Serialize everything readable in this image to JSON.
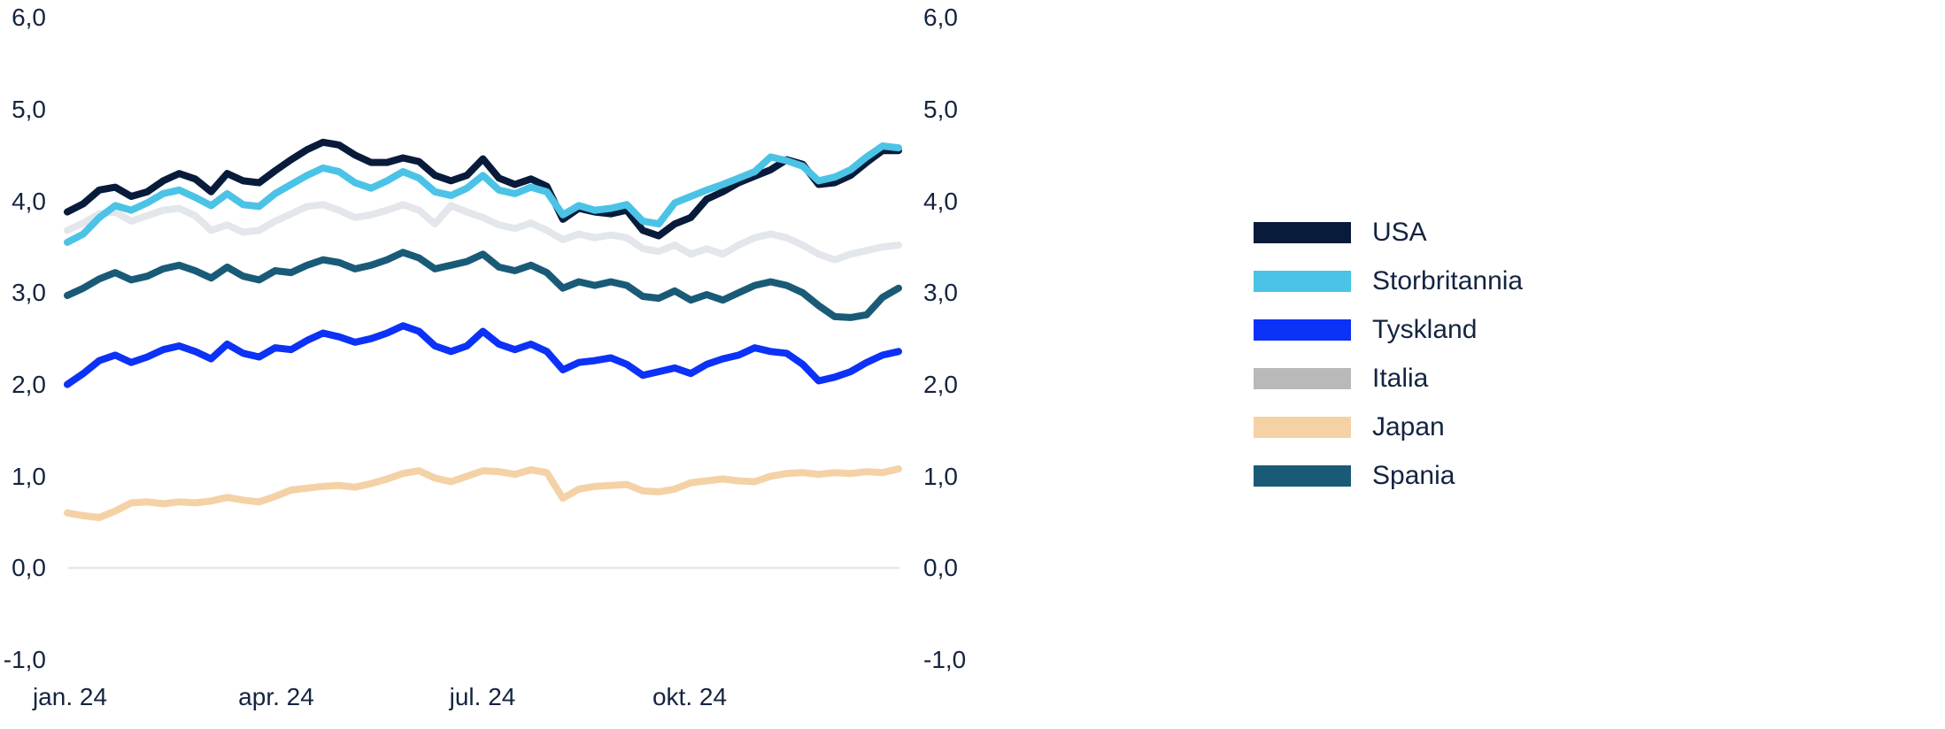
{
  "background_color": "#ffffff",
  "text_color": "#142440",
  "gridline_color": "#e8e8e8",
  "chart_data": {
    "type": "line",
    "title": "",
    "xlabel": "",
    "ylabel": "",
    "ylim": [
      -1,
      6
    ],
    "grid": "zero-line-only",
    "legend_position": "right",
    "decimal_separator": ",",
    "y_ticks": [
      6,
      5,
      4,
      3,
      2,
      1,
      0,
      -1
    ],
    "y_tick_labels": [
      "6,0",
      "5,0",
      "4,0",
      "3,0",
      "2,0",
      "1,0",
      "0,0",
      "-1,0"
    ],
    "x_tick_labels": [
      "jan. 24",
      "apr. 24",
      "jul. 24",
      "okt. 24"
    ],
    "x": {
      "unit": "week",
      "n_points": 53,
      "start": "jan. 24",
      "tick_week_index": [
        0,
        13,
        26,
        39
      ]
    },
    "series": [
      {
        "name": "USA",
        "color": "#081b3a",
        "values": [
          3.88,
          3.97,
          4.12,
          4.15,
          4.05,
          4.1,
          4.22,
          4.3,
          4.24,
          4.1,
          4.3,
          4.22,
          4.2,
          4.33,
          4.45,
          4.56,
          4.64,
          4.61,
          4.5,
          4.42,
          4.42,
          4.47,
          4.43,
          4.28,
          4.22,
          4.28,
          4.46,
          4.25,
          4.18,
          4.24,
          4.16,
          3.8,
          3.92,
          3.88,
          3.86,
          3.9,
          3.68,
          3.62,
          3.75,
          3.82,
          4.02,
          4.1,
          4.2,
          4.27,
          4.34,
          4.45,
          4.4,
          4.18,
          4.2,
          4.28,
          4.42,
          4.55,
          4.55
        ]
      },
      {
        "name": "Storbritannia",
        "color": "#4bc3e6",
        "values": [
          3.55,
          3.64,
          3.82,
          3.95,
          3.9,
          3.98,
          4.08,
          4.12,
          4.04,
          3.95,
          4.08,
          3.96,
          3.94,
          4.08,
          4.18,
          4.28,
          4.36,
          4.32,
          4.2,
          4.14,
          4.22,
          4.32,
          4.25,
          4.1,
          4.06,
          4.14,
          4.28,
          4.12,
          4.08,
          4.15,
          4.1,
          3.85,
          3.95,
          3.9,
          3.92,
          3.96,
          3.78,
          3.75,
          3.98,
          4.05,
          4.12,
          4.18,
          4.25,
          4.32,
          4.48,
          4.44,
          4.38,
          4.22,
          4.26,
          4.34,
          4.48,
          4.6,
          4.58
        ]
      },
      {
        "name": "Tyskland",
        "color": "#0c31f7",
        "values": [
          2.0,
          2.12,
          2.26,
          2.32,
          2.24,
          2.3,
          2.38,
          2.42,
          2.36,
          2.28,
          2.44,
          2.34,
          2.3,
          2.4,
          2.38,
          2.48,
          2.56,
          2.52,
          2.46,
          2.5,
          2.56,
          2.64,
          2.58,
          2.42,
          2.36,
          2.42,
          2.58,
          2.44,
          2.38,
          2.44,
          2.36,
          2.16,
          2.24,
          2.26,
          2.29,
          2.22,
          2.1,
          2.14,
          2.18,
          2.12,
          2.22,
          2.28,
          2.32,
          2.4,
          2.36,
          2.34,
          2.22,
          2.04,
          2.08,
          2.14,
          2.24,
          2.32,
          2.36
        ]
      },
      {
        "name": "Italia",
        "color": "#b9b9b9",
        "line_color": "#e3e6ea",
        "values": [
          3.68,
          3.76,
          3.86,
          3.88,
          3.78,
          3.84,
          3.9,
          3.92,
          3.84,
          3.68,
          3.74,
          3.66,
          3.68,
          3.78,
          3.86,
          3.94,
          3.96,
          3.9,
          3.82,
          3.85,
          3.9,
          3.96,
          3.9,
          3.75,
          3.95,
          3.88,
          3.82,
          3.74,
          3.7,
          3.76,
          3.68,
          3.58,
          3.64,
          3.6,
          3.63,
          3.6,
          3.48,
          3.45,
          3.52,
          3.42,
          3.48,
          3.42,
          3.52,
          3.6,
          3.64,
          3.6,
          3.52,
          3.42,
          3.36,
          3.42,
          3.46,
          3.5,
          3.52
        ]
      },
      {
        "name": "Japan",
        "color": "#f4d2a6",
        "values": [
          0.6,
          0.57,
          0.55,
          0.62,
          0.71,
          0.72,
          0.7,
          0.72,
          0.71,
          0.73,
          0.77,
          0.74,
          0.72,
          0.78,
          0.85,
          0.87,
          0.89,
          0.9,
          0.88,
          0.92,
          0.97,
          1.03,
          1.06,
          0.98,
          0.94,
          1.0,
          1.06,
          1.05,
          1.02,
          1.07,
          1.04,
          0.76,
          0.86,
          0.89,
          0.9,
          0.91,
          0.84,
          0.83,
          0.86,
          0.93,
          0.95,
          0.97,
          0.95,
          0.94,
          1.0,
          1.03,
          1.04,
          1.02,
          1.04,
          1.03,
          1.05,
          1.04,
          1.08
        ]
      },
      {
        "name": "Spania",
        "color": "#195b77",
        "values": [
          2.97,
          3.05,
          3.15,
          3.22,
          3.14,
          3.18,
          3.26,
          3.3,
          3.24,
          3.16,
          3.28,
          3.18,
          3.14,
          3.24,
          3.22,
          3.3,
          3.36,
          3.33,
          3.26,
          3.3,
          3.36,
          3.44,
          3.38,
          3.26,
          3.3,
          3.34,
          3.42,
          3.28,
          3.24,
          3.3,
          3.22,
          3.05,
          3.12,
          3.08,
          3.12,
          3.08,
          2.96,
          2.94,
          3.02,
          2.92,
          2.98,
          2.92,
          3.0,
          3.08,
          3.12,
          3.08,
          3.0,
          2.86,
          2.74,
          2.73,
          2.76,
          2.95,
          3.05
        ]
      }
    ],
    "draw_order": [
      "Italia",
      "Japan",
      "Spania",
      "Tyskland",
      "USA",
      "Storbritannia"
    ]
  }
}
